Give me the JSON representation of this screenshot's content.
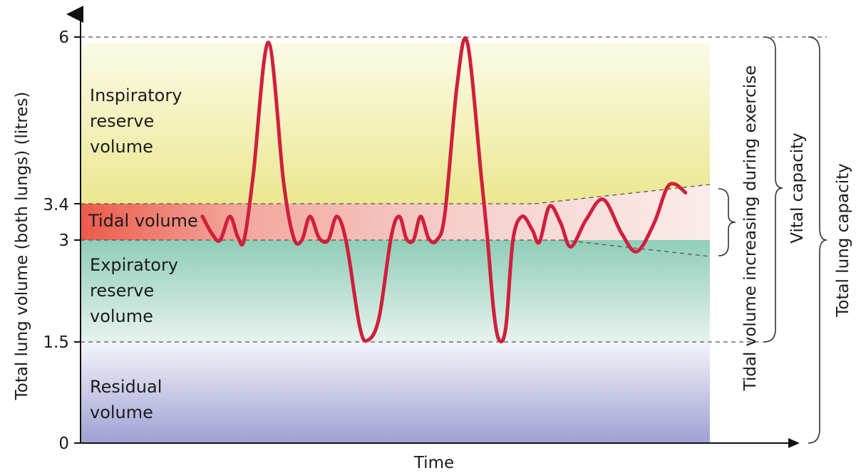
{
  "chart_data": {
    "type": "line",
    "xlabel": "Time",
    "ylabel": "Total lung volume (both lungs) (litres)",
    "ylim": [
      0,
      6
    ],
    "y_ticks": [
      {
        "value": 0,
        "label": "0"
      },
      {
        "value": 1.5,
        "label": "1.5"
      },
      {
        "value": 3,
        "label": "3"
      },
      {
        "value": 3.4,
        "label": "3.4"
      },
      {
        "value": 6,
        "label": "6"
      }
    ],
    "regions": [
      {
        "name": "Inspiratory reserve volume",
        "lines": [
          "Inspiratory",
          "reserve",
          "volume"
        ],
        "y_range": [
          3.4,
          6
        ],
        "color": "#eeeaa0"
      },
      {
        "name": "Tidal volume",
        "lines": [
          "Tidal volume"
        ],
        "y_range": [
          3,
          3.4
        ],
        "color": "#ef5f52"
      },
      {
        "name": "Expiratory reserve volume",
        "lines": [
          "Expiratory",
          "reserve",
          "volume"
        ],
        "y_range": [
          1.5,
          3
        ],
        "color": "#9fd3c0"
      },
      {
        "name": "Residual volume",
        "lines": [
          "Residual",
          "volume"
        ],
        "y_range": [
          0,
          1.5
        ],
        "color": "#a6a4d6"
      }
    ],
    "trace": {
      "color": "#d01f3c",
      "description": "breathing volume over time",
      "x_range": [
        0,
        1
      ],
      "points": [
        [
          0.0,
          3.35
        ],
        [
          0.02,
          3.08
        ],
        [
          0.035,
          3.0
        ],
        [
          0.054,
          3.35
        ],
        [
          0.07,
          3.04
        ],
        [
          0.082,
          3.0
        ],
        [
          0.1,
          3.95
        ],
        [
          0.13,
          5.92
        ],
        [
          0.16,
          3.85
        ],
        [
          0.18,
          3.03
        ],
        [
          0.196,
          3.0
        ],
        [
          0.212,
          3.35
        ],
        [
          0.23,
          3.03
        ],
        [
          0.248,
          3.0
        ],
        [
          0.265,
          3.35
        ],
        [
          0.284,
          2.95
        ],
        [
          0.31,
          1.72
        ],
        [
          0.326,
          1.52
        ],
        [
          0.348,
          1.85
        ],
        [
          0.372,
          3.05
        ],
        [
          0.388,
          3.35
        ],
        [
          0.402,
          3.02
        ],
        [
          0.416,
          3.0
        ],
        [
          0.43,
          3.35
        ],
        [
          0.446,
          3.02
        ],
        [
          0.462,
          3.0
        ],
        [
          0.478,
          3.4
        ],
        [
          0.502,
          5.3
        ],
        [
          0.522,
          5.92
        ],
        [
          0.55,
          3.9
        ],
        [
          0.562,
          3.0
        ],
        [
          0.574,
          1.95
        ],
        [
          0.585,
          1.52
        ],
        [
          0.598,
          1.72
        ],
        [
          0.612,
          3.0
        ],
        [
          0.63,
          3.35
        ],
        [
          0.65,
          3.15
        ],
        [
          0.664,
          2.97
        ],
        [
          0.684,
          3.5
        ],
        [
          0.706,
          3.25
        ],
        [
          0.726,
          2.9
        ],
        [
          0.756,
          3.3
        ],
        [
          0.79,
          3.6
        ],
        [
          0.826,
          3.1
        ],
        [
          0.856,
          2.83
        ],
        [
          0.89,
          3.25
        ],
        [
          0.914,
          3.75
        ],
        [
          0.93,
          3.83
        ],
        [
          0.952,
          3.7
        ]
      ]
    },
    "brackets": [
      {
        "label": "Tidal volume increasing during exercise",
        "y_range": [
          2.82,
          3.78
        ]
      },
      {
        "label": "Vital capacity",
        "y_range": [
          1.5,
          6
        ]
      },
      {
        "label": "Total lung capacity",
        "y_range": [
          0,
          6
        ]
      }
    ],
    "grid": false
  }
}
